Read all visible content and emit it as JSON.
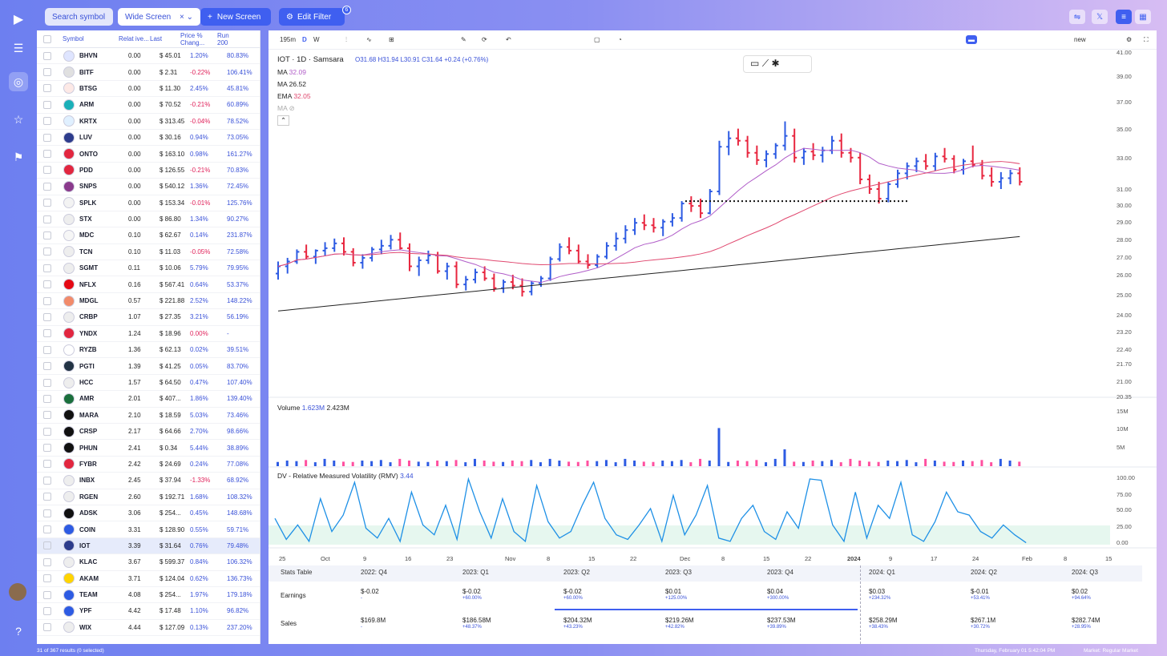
{
  "topbar": {
    "search_label": "Search symbol",
    "screen_name": "Wide Screen",
    "new_screen_label": "New Screen",
    "edit_filter_label": "Edit Filter",
    "filter_count": "6"
  },
  "table": {
    "headers": {
      "symbol": "Symbol",
      "relative": "Relat ive...",
      "price": "Last",
      "change": "Price % Chang...",
      "run": "Run 200"
    },
    "rows": [
      {
        "sym": "BHVN",
        "rel": "0.00",
        "price": "$ 45.01",
        "chg": "1.20%",
        "run": "80.83%"
      },
      {
        "sym": "BITF",
        "rel": "0.00",
        "price": "$ 2.31",
        "chg": "-0.22%",
        "run": "106.41%"
      },
      {
        "sym": "BTSG",
        "rel": "0.00",
        "price": "$ 11.30",
        "chg": "2.45%",
        "run": "45.81%"
      },
      {
        "sym": "ARM",
        "rel": "0.00",
        "price": "$ 70.52",
        "chg": "-0.21%",
        "run": "60.89%"
      },
      {
        "sym": "KRTX",
        "rel": "0.00",
        "price": "$ 313.45",
        "chg": "-0.04%",
        "run": "78.52%"
      },
      {
        "sym": "LUV",
        "rel": "0.00",
        "price": "$ 30.16",
        "chg": "0.94%",
        "run": "73.05%"
      },
      {
        "sym": "ONTO",
        "rel": "0.00",
        "price": "$ 163.10",
        "chg": "0.98%",
        "run": "161.27%"
      },
      {
        "sym": "PDD",
        "rel": "0.00",
        "price": "$ 126.55",
        "chg": "-0.21%",
        "run": "70.83%"
      },
      {
        "sym": "SNPS",
        "rel": "0.00",
        "price": "$ 540.12",
        "chg": "1.36%",
        "run": "72.45%"
      },
      {
        "sym": "SPLK",
        "rel": "0.00",
        "price": "$ 153.34",
        "chg": "-0.01%",
        "run": "125.76%"
      },
      {
        "sym": "STX",
        "rel": "0.00",
        "price": "$ 86.80",
        "chg": "1.34%",
        "run": "90.27%"
      },
      {
        "sym": "MDC",
        "rel": "0.10",
        "price": "$ 62.67",
        "chg": "0.14%",
        "run": "231.87%"
      },
      {
        "sym": "TCN",
        "rel": "0.10",
        "price": "$ 11.03",
        "chg": "-0.05%",
        "run": "72.58%"
      },
      {
        "sym": "SGMT",
        "rel": "0.11",
        "price": "$ 10.06",
        "chg": "5.79%",
        "run": "79.95%"
      },
      {
        "sym": "NFLX",
        "rel": "0.16",
        "price": "$ 567.41",
        "chg": "0.64%",
        "run": "53.37%"
      },
      {
        "sym": "MDGL",
        "rel": "0.57",
        "price": "$ 221.88",
        "chg": "2.52%",
        "run": "148.22%"
      },
      {
        "sym": "CRBP",
        "rel": "1.07",
        "price": "$ 27.35",
        "chg": "3.21%",
        "run": "56.19%"
      },
      {
        "sym": "YNDX",
        "rel": "1.24",
        "price": "$ 18.96",
        "chg": "0.00%",
        "run": "-"
      },
      {
        "sym": "RYZB",
        "rel": "1.36",
        "price": "$ 62.13",
        "chg": "0.02%",
        "run": "39.51%"
      },
      {
        "sym": "PGTI",
        "rel": "1.39",
        "price": "$ 41.25",
        "chg": "0.05%",
        "run": "83.70%"
      },
      {
        "sym": "HCC",
        "rel": "1.57",
        "price": "$ 64.50",
        "chg": "0.47%",
        "run": "107.40%"
      },
      {
        "sym": "AMR",
        "rel": "2.01",
        "price": "$ 407...",
        "chg": "1.86%",
        "run": "139.40%"
      },
      {
        "sym": "MARA",
        "rel": "2.10",
        "price": "$ 18.59",
        "chg": "5.03%",
        "run": "73.46%"
      },
      {
        "sym": "CRSP",
        "rel": "2.17",
        "price": "$ 64.66",
        "chg": "2.70%",
        "run": "98.66%"
      },
      {
        "sym": "PHUN",
        "rel": "2.41",
        "price": "$ 0.34",
        "chg": "5.44%",
        "run": "38.89%"
      },
      {
        "sym": "FYBR",
        "rel": "2.42",
        "price": "$ 24.69",
        "chg": "0.24%",
        "run": "77.08%"
      },
      {
        "sym": "INBX",
        "rel": "2.45",
        "price": "$ 37.94",
        "chg": "-1.33%",
        "run": "68.92%"
      },
      {
        "sym": "RGEN",
        "rel": "2.60",
        "price": "$ 192.71",
        "chg": "1.68%",
        "run": "108.32%"
      },
      {
        "sym": "ADSK",
        "rel": "3.06",
        "price": "$ 254...",
        "chg": "0.45%",
        "run": "148.68%"
      },
      {
        "sym": "COIN",
        "rel": "3.31",
        "price": "$ 128.90",
        "chg": "0.55%",
        "run": "59.71%"
      },
      {
        "sym": "IOT",
        "rel": "3.39",
        "price": "$ 31.64",
        "chg": "0.76%",
        "run": "79.48%"
      },
      {
        "sym": "KLAC",
        "rel": "3.67",
        "price": "$ 599.37",
        "chg": "0.84%",
        "run": "106.32%"
      },
      {
        "sym": "AKAM",
        "rel": "3.71",
        "price": "$ 124.04",
        "chg": "0.62%",
        "run": "136.73%"
      },
      {
        "sym": "TEAM",
        "rel": "4.08",
        "price": "$ 254...",
        "chg": "1.97%",
        "run": "179.18%"
      },
      {
        "sym": "YPF",
        "rel": "4.42",
        "price": "$ 17.48",
        "chg": "1.10%",
        "run": "96.82%"
      },
      {
        "sym": "WIX",
        "rel": "4.44",
        "price": "$ 127.09",
        "chg": "0.13%",
        "run": "237.20%"
      }
    ],
    "results_text": "31 of 367 results (0 selected)"
  },
  "chart_toolbar": {
    "interval": "195m",
    "d": "D",
    "w": "W",
    "layout_label": "new"
  },
  "legend": {
    "title": "IOT · 1D · Samsara",
    "ohlc": "O31.68 H31.94 L30.91 C31.64 +0.24 (+0.76%)",
    "ma1_label": "MA",
    "ma1_value": "32.09",
    "ma2_label": "MA",
    "ma2_value": "26.52",
    "ema_label": "EMA",
    "ema_value": "32.05",
    "ma_hidden": "MA",
    "volume_label": "Volume",
    "volume_v1": "1.623M",
    "volume_v2": "2.423M",
    "rmv_label": "DV - Relative Measured Volatility (RMV)",
    "rmv_value": "3.44"
  },
  "price_axis": [
    "41.00",
    "39.00",
    "37.00",
    "35.00",
    "33.00",
    "31.00",
    "30.00",
    "29.00",
    "28.00",
    "27.00",
    "26.00",
    "25.00",
    "24.00",
    "23.20",
    "22.40",
    "21.70",
    "21.00",
    "20.35"
  ],
  "volume_axis": [
    "15M",
    "10M",
    "5M"
  ],
  "rmv_axis": [
    "100.00",
    "75.00",
    "50.00",
    "25.00",
    "0.00"
  ],
  "x_axis": [
    "25",
    "Oct",
    "9",
    "16",
    "23",
    "Nov",
    "8",
    "15",
    "22",
    "Dec",
    "8",
    "15",
    "22",
    "2024",
    "9",
    "17",
    "24",
    "Feb",
    "8",
    "15"
  ],
  "stats": {
    "title": "Stats Table",
    "earnings_label": "Earnings",
    "sales_label": "Sales",
    "periods": [
      "2022: Q4",
      "2023: Q1",
      "2023: Q2",
      "2023: Q3",
      "2023: Q4",
      "2024: Q1",
      "2024: Q2",
      "2024: Q3"
    ],
    "earnings": [
      {
        "v": "$-0.02",
        "s": "-"
      },
      {
        "v": "$-0.02",
        "s": "+60.00%"
      },
      {
        "v": "$-0.02",
        "s": "+60.00%"
      },
      {
        "v": "$0.01",
        "s": "+125.00%"
      },
      {
        "v": "$0.04",
        "s": "+300.00%"
      },
      {
        "v": "$0.03",
        "s": "+234.32%"
      },
      {
        "v": "$-0.01",
        "s": "+53.41%"
      },
      {
        "v": "$0.02",
        "s": "+94.64%"
      }
    ],
    "sales": [
      {
        "v": "$169.8M",
        "s": "-"
      },
      {
        "v": "$186.58M",
        "s": "+48.37%"
      },
      {
        "v": "$204.32M",
        "s": "+43.23%"
      },
      {
        "v": "$219.26M",
        "s": "+42.82%"
      },
      {
        "v": "$237.53M",
        "s": "+39.89%"
      },
      {
        "v": "$258.29M",
        "s": "+38.43%"
      },
      {
        "v": "$267.1M",
        "s": "+30.72%"
      },
      {
        "v": "$282.74M",
        "s": "+28.95%"
      }
    ]
  },
  "status": {
    "datetime": "Thursday, February 01 5:42:04 PM",
    "market": "Market: Regular Market"
  },
  "colors": {
    "accent": "#3f5ff0",
    "up": "#2d5be3",
    "down": "#e8263f",
    "ma_purple": "#b05cc8",
    "ma_pink": "#e0486f"
  }
}
